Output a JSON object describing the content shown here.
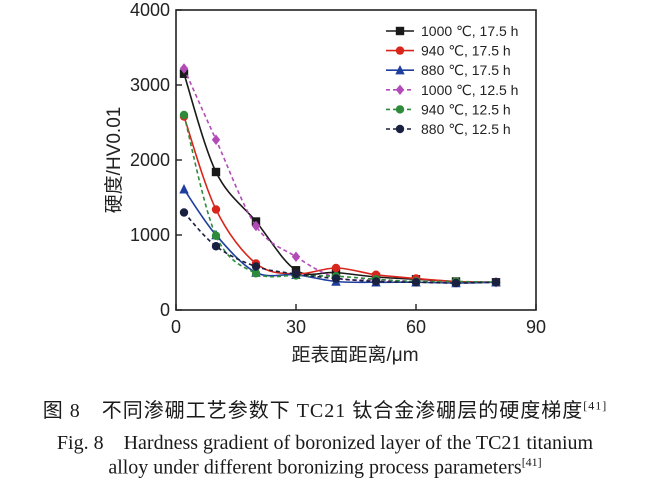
{
  "chart_data": {
    "type": "line",
    "xlabel": "距表面距离/μm",
    "ylabel": "硬度/HV0.01",
    "xlim": [
      0,
      90
    ],
    "ylim": [
      0,
      4000
    ],
    "xticks": [
      0,
      30,
      60,
      90
    ],
    "yticks": [
      0,
      1000,
      2000,
      3000,
      4000
    ],
    "xtick_labels": [
      "0",
      "30",
      "60",
      "90"
    ],
    "ytick_labels": [
      "0",
      "1000",
      "2000",
      "3000",
      "4000"
    ],
    "legend_position": "top-right",
    "series": [
      {
        "name": "1000 ℃, 17.5 h",
        "color": "#1a1a1a",
        "marker": "square",
        "dash": false,
        "x": [
          2,
          10,
          20,
          30,
          40,
          50,
          60,
          70,
          80
        ],
        "y": [
          3150,
          1840,
          1180,
          530,
          500,
          440,
          410,
          380,
          370
        ]
      },
      {
        "name": "940 ℃, 17.5 h",
        "color": "#d9261c",
        "marker": "circle",
        "dash": false,
        "x": [
          2,
          10,
          20,
          30,
          40,
          50,
          60,
          70,
          80
        ],
        "y": [
          2580,
          1340,
          620,
          480,
          560,
          470,
          420,
          380,
          370
        ]
      },
      {
        "name": "880 ℃, 17.5 h",
        "color": "#1f3f9e",
        "marker": "triangle",
        "dash": false,
        "x": [
          2,
          10,
          20,
          30,
          40,
          50,
          60,
          70,
          80
        ],
        "y": [
          1610,
          1000,
          500,
          470,
          380,
          370,
          370,
          360,
          370
        ]
      },
      {
        "name": "1000 ℃, 12.5 h",
        "color": "#b24bb8",
        "marker": "diamond",
        "dash": true,
        "x": [
          2,
          10,
          20,
          30,
          40,
          50,
          60,
          70,
          80
        ],
        "y": [
          3220,
          2270,
          1120,
          710,
          430,
          400,
          380,
          370,
          370
        ]
      },
      {
        "name": "940 ℃, 12.5 h",
        "color": "#2e8b3a",
        "marker": "circle",
        "dash": true,
        "x": [
          2,
          10,
          20,
          30,
          40,
          50,
          60,
          70,
          80
        ],
        "y": [
          2600,
          990,
          490,
          460,
          450,
          410,
          380,
          380,
          370
        ]
      },
      {
        "name": "880 ℃, 12.5 h",
        "color": "#1a2040",
        "marker": "circle",
        "dash": true,
        "x": [
          2,
          10,
          20,
          30,
          40,
          50,
          60,
          70,
          80
        ],
        "y": [
          1300,
          850,
          580,
          480,
          420,
          380,
          370,
          360,
          370
        ]
      }
    ]
  },
  "caption": {
    "zh": "图 8　不同渗硼工艺参数下 TC21 钛合金渗硼层的硬度梯度",
    "en_line1": "Fig. 8　Hardness gradient of boronized layer of the TC21 titanium",
    "en_line2": "alloy under different boronizing process parameters",
    "ref": "[41]"
  }
}
